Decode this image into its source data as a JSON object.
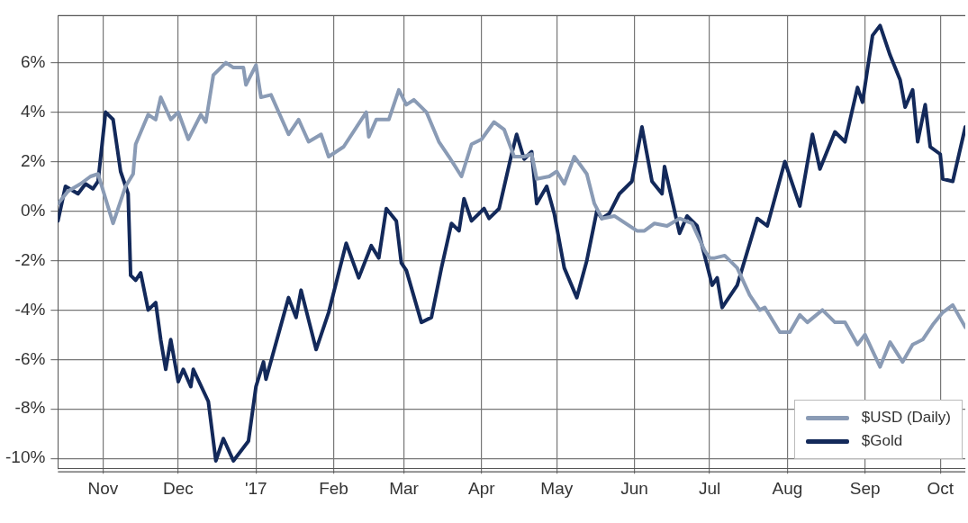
{
  "chart_data": {
    "type": "line",
    "xlim": [
      "2016-10-14",
      "2017-10-11"
    ],
    "xticks": [
      {
        "value": "2016-11-01",
        "label": "Nov"
      },
      {
        "value": "2016-12-01",
        "label": "Dec"
      },
      {
        "value": "2017-01-01",
        "label": "'17"
      },
      {
        "value": "2017-02-01",
        "label": "Feb"
      },
      {
        "value": "2017-03-01",
        "label": "Mar"
      },
      {
        "value": "2017-04-01",
        "label": "Apr"
      },
      {
        "value": "2017-05-01",
        "label": "May"
      },
      {
        "value": "2017-06-01",
        "label": "Jun"
      },
      {
        "value": "2017-07-01",
        "label": "Jul"
      },
      {
        "value": "2017-08-01",
        "label": "Aug"
      },
      {
        "value": "2017-09-01",
        "label": "Sep"
      },
      {
        "value": "2017-10-01",
        "label": "Oct"
      }
    ],
    "ylim": [
      -10.4,
      7.9
    ],
    "yticks": [
      {
        "value": -10,
        "label": "-10%"
      },
      {
        "value": -8,
        "label": "-8%"
      },
      {
        "value": -6,
        "label": "-6%"
      },
      {
        "value": -4,
        "label": "-4%"
      },
      {
        "value": -2,
        "label": "-2%"
      },
      {
        "value": 0,
        "label": "0%"
      },
      {
        "value": 2,
        "label": "2%"
      },
      {
        "value": 4,
        "label": "4%"
      },
      {
        "value": 6,
        "label": "6%"
      }
    ],
    "grid": true,
    "legend": "bottom right",
    "marker": "none",
    "line_style": "solid",
    "series": [
      {
        "name": "$USD (Daily)",
        "color": "#8a9bb5",
        "x": [
          "2016-10-14",
          "2016-10-18",
          "2016-10-23",
          "2016-10-27",
          "2016-10-30",
          "2016-11-05",
          "2016-11-10",
          "2016-11-13",
          "2016-11-14",
          "2016-11-19",
          "2016-11-22",
          "2016-11-24",
          "2016-11-28",
          "2016-12-01",
          "2016-12-05",
          "2016-12-10",
          "2016-12-12",
          "2016-12-15",
          "2016-12-20",
          "2016-12-23",
          "2016-12-27",
          "2016-12-28",
          "2017-01-01",
          "2017-01-03",
          "2017-01-07",
          "2017-01-14",
          "2017-01-18",
          "2017-01-22",
          "2017-01-27",
          "2017-01-30",
          "2017-02-05",
          "2017-02-14",
          "2017-02-15",
          "2017-02-18",
          "2017-02-23",
          "2017-02-27",
          "2017-03-02",
          "2017-03-05",
          "2017-03-10",
          "2017-03-15",
          "2017-03-19",
          "2017-03-24",
          "2017-03-28",
          "2017-04-01",
          "2017-04-06",
          "2017-04-10",
          "2017-04-14",
          "2017-04-18",
          "2017-04-21",
          "2017-04-23",
          "2017-04-28",
          "2017-05-01",
          "2017-05-04",
          "2017-05-08",
          "2017-05-13",
          "2017-05-16",
          "2017-05-19",
          "2017-05-24",
          "2017-06-02",
          "2017-06-05",
          "2017-06-09",
          "2017-06-14",
          "2017-06-19",
          "2017-06-24",
          "2017-06-29",
          "2017-07-01",
          "2017-07-03",
          "2017-07-07",
          "2017-07-12",
          "2017-07-17",
          "2017-07-21",
          "2017-07-23",
          "2017-07-29",
          "2017-08-02",
          "2017-08-06",
          "2017-08-09",
          "2017-08-15",
          "2017-08-20",
          "2017-08-24",
          "2017-08-29",
          "2017-09-01",
          "2017-09-07",
          "2017-09-11",
          "2017-09-16",
          "2017-09-20",
          "2017-09-24",
          "2017-09-28",
          "2017-10-02",
          "2017-10-06",
          "2017-10-11"
        ],
        "values": [
          0.3,
          0.8,
          1.1,
          1.4,
          1.5,
          -0.5,
          1.0,
          1.5,
          2.7,
          3.9,
          3.7,
          4.6,
          3.7,
          4.0,
          2.9,
          3.9,
          3.6,
          5.5,
          6.0,
          5.8,
          5.8,
          5.1,
          5.9,
          4.6,
          4.7,
          3.1,
          3.7,
          2.8,
          3.1,
          2.2,
          2.6,
          4.0,
          3.0,
          3.7,
          3.7,
          4.9,
          4.3,
          4.5,
          4.0,
          2.8,
          2.2,
          1.4,
          2.7,
          2.9,
          3.6,
          3.3,
          2.2,
          2.2,
          2.3,
          1.3,
          1.4,
          1.6,
          1.1,
          2.2,
          1.5,
          0.3,
          -0.3,
          -0.2,
          -0.8,
          -0.8,
          -0.5,
          -0.6,
          -0.3,
          -0.5,
          -1.6,
          -1.9,
          -1.9,
          -1.8,
          -2.3,
          -3.4,
          -4.0,
          -3.9,
          -4.9,
          -4.9,
          -4.2,
          -4.5,
          -4.0,
          -4.5,
          -4.5,
          -5.4,
          -5.0,
          -6.3,
          -5.3,
          -6.1,
          -5.4,
          -5.2,
          -4.6,
          -4.1,
          -3.8,
          -4.7
        ]
      },
      {
        "name": "$Gold",
        "color": "#13295a",
        "x": [
          "2016-10-14",
          "2016-10-17",
          "2016-10-22",
          "2016-10-25",
          "2016-10-28",
          "2016-10-30",
          "2016-11-02",
          "2016-11-05",
          "2016-11-08",
          "2016-11-11",
          "2016-11-12",
          "2016-11-14",
          "2016-11-16",
          "2016-11-19",
          "2016-11-22",
          "2016-11-24",
          "2016-11-26",
          "2016-11-28",
          "2016-12-01",
          "2016-12-03",
          "2016-12-06",
          "2016-12-07",
          "2016-12-13",
          "2016-12-16",
          "2016-12-19",
          "2016-12-23",
          "2016-12-29",
          "2017-01-01",
          "2017-01-04",
          "2017-01-05",
          "2017-01-14",
          "2017-01-17",
          "2017-01-19",
          "2017-01-25",
          "2017-01-30",
          "2017-02-06",
          "2017-02-11",
          "2017-02-16",
          "2017-02-19",
          "2017-02-22",
          "2017-02-26",
          "2017-02-28",
          "2017-03-02",
          "2017-03-08",
          "2017-03-12",
          "2017-03-16",
          "2017-03-20",
          "2017-03-23",
          "2017-03-25",
          "2017-03-28",
          "2017-04-02",
          "2017-04-04",
          "2017-04-08",
          "2017-04-13",
          "2017-04-15",
          "2017-04-18",
          "2017-04-21",
          "2017-04-23",
          "2017-04-27",
          "2017-04-30",
          "2017-05-04",
          "2017-05-09",
          "2017-05-13",
          "2017-05-17",
          "2017-05-19",
          "2017-05-22",
          "2017-05-26",
          "2017-05-31",
          "2017-06-04",
          "2017-06-08",
          "2017-06-12",
          "2017-06-13",
          "2017-06-19",
          "2017-06-22",
          "2017-06-26",
          "2017-07-02",
          "2017-07-04",
          "2017-07-06",
          "2017-07-12",
          "2017-07-20",
          "2017-07-24",
          "2017-07-31",
          "2017-08-06",
          "2017-08-11",
          "2017-08-14",
          "2017-08-20",
          "2017-08-24",
          "2017-08-29",
          "2017-08-31",
          "2017-09-04",
          "2017-09-07",
          "2017-09-11",
          "2017-09-15",
          "2017-09-17",
          "2017-09-20",
          "2017-09-22",
          "2017-09-25",
          "2017-09-27",
          "2017-10-01",
          "2017-10-02",
          "2017-10-06",
          "2017-10-11"
        ],
        "values": [
          -0.4,
          1.0,
          0.7,
          1.1,
          0.9,
          1.2,
          4.0,
          3.7,
          1.6,
          0.7,
          -2.6,
          -2.8,
          -2.5,
          -4.0,
          -3.7,
          -5.2,
          -6.4,
          -5.2,
          -6.9,
          -6.4,
          -7.1,
          -6.4,
          -7.7,
          -10.1,
          -9.2,
          -10.1,
          -9.3,
          -7.1,
          -6.1,
          -6.8,
          -3.5,
          -4.3,
          -3.2,
          -5.6,
          -4.1,
          -1.3,
          -2.7,
          -1.4,
          -1.9,
          0.1,
          -0.4,
          -2.1,
          -2.4,
          -4.5,
          -4.3,
          -2.3,
          -0.5,
          -0.8,
          0.5,
          -0.4,
          0.1,
          -0.3,
          0.1,
          2.3,
          3.1,
          2.1,
          2.4,
          0.3,
          1.0,
          -0.1,
          -2.3,
          -3.5,
          -2.0,
          0.0,
          -0.3,
          -0.1,
          0.7,
          1.2,
          3.4,
          1.2,
          0.7,
          1.8,
          -0.9,
          -0.2,
          -0.6,
          -3.0,
          -2.7,
          -3.9,
          -3.0,
          -0.3,
          -0.6,
          2.0,
          0.2,
          3.1,
          1.7,
          3.2,
          2.8,
          5.0,
          4.4,
          7.1,
          7.5,
          6.3,
          5.3,
          4.2,
          4.9,
          2.8,
          4.3,
          2.6,
          2.3,
          1.3,
          1.2,
          3.4
        ]
      }
    ]
  }
}
